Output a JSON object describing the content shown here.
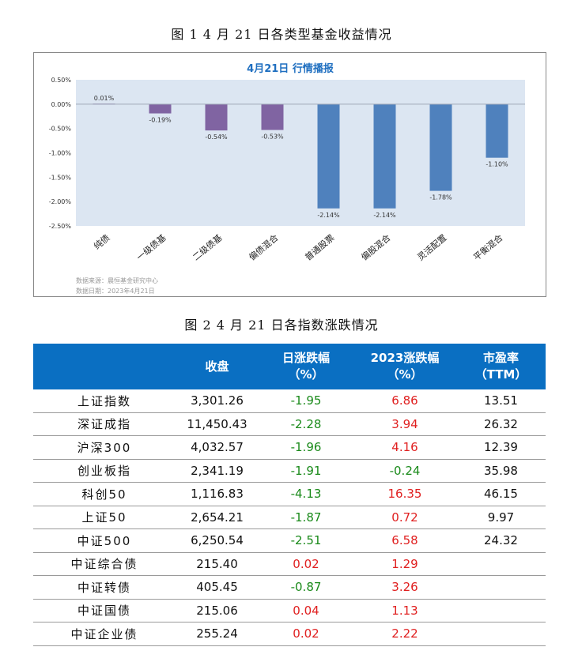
{
  "figure1_caption": "图 1   4 月 21 日各类型基金收益情况",
  "figure2_caption": "图 2   4 月 21 日各指数涨跌情况",
  "chart_data": {
    "type": "bar",
    "title": "4月21日  行情播报",
    "categories": [
      "纯债",
      "一级债基",
      "二级债基",
      "偏债混合",
      "普通股票",
      "偏股混合",
      "灵活配置",
      "平衡混合"
    ],
    "values": [
      0.01,
      -0.19,
      -0.54,
      -0.53,
      -2.14,
      -2.14,
      -1.78,
      -1.1
    ],
    "data_labels": [
      "0.01%",
      "-0.19%",
      "-0.54%",
      "-0.53%",
      "-2.14%",
      "-2.14%",
      "-1.78%",
      "-1.10%"
    ],
    "bar_colors": [
      "#8064a2",
      "#8064a2",
      "#8064a2",
      "#8064a2",
      "#4f81bd",
      "#4f81bd",
      "#4f81bd",
      "#4f81bd"
    ],
    "yticks": [
      "0.50%",
      "0.00%",
      "-0.50%",
      "-1.00%",
      "-1.50%",
      "-2.00%",
      "-2.50%"
    ],
    "ylim": [
      -2.5,
      0.5
    ],
    "plot_bg": "#dce6f2",
    "source": "数据来源：晨恒基金研究中心",
    "date": "数据日期：2023年4月21日"
  },
  "table": {
    "headers": [
      [
        "",
        ""
      ],
      [
        "收盘",
        ""
      ],
      [
        "日涨跌幅",
        "（%）"
      ],
      [
        "2023涨跌幅",
        "（%）"
      ],
      [
        "市盈率",
        "（TTM）"
      ]
    ],
    "rows": [
      [
        "上证指数",
        "3,301.26",
        "-1.95",
        "6.86",
        "13.51"
      ],
      [
        "深证成指",
        "11,450.43",
        "-2.28",
        "3.94",
        "26.32"
      ],
      [
        "沪深300",
        "4,032.57",
        "-1.96",
        "4.16",
        "12.39"
      ],
      [
        "创业板指",
        "2,341.19",
        "-1.91",
        "-0.24",
        "35.98"
      ],
      [
        "科创50",
        "1,116.83",
        "-4.13",
        "16.35",
        "46.15"
      ],
      [
        "上证50",
        "2,654.21",
        "-1.87",
        "0.72",
        "9.97"
      ],
      [
        "中证500",
        "6,250.54",
        "-2.51",
        "6.58",
        "24.32"
      ],
      [
        "中证综合债",
        "215.40",
        "0.02",
        "1.29",
        ""
      ],
      [
        "中证转债",
        "405.45",
        "-0.87",
        "3.26",
        ""
      ],
      [
        "中证国债",
        "215.06",
        "0.04",
        "1.13",
        ""
      ],
      [
        "中证企业债",
        "255.24",
        "0.02",
        "2.22",
        ""
      ]
    ]
  }
}
